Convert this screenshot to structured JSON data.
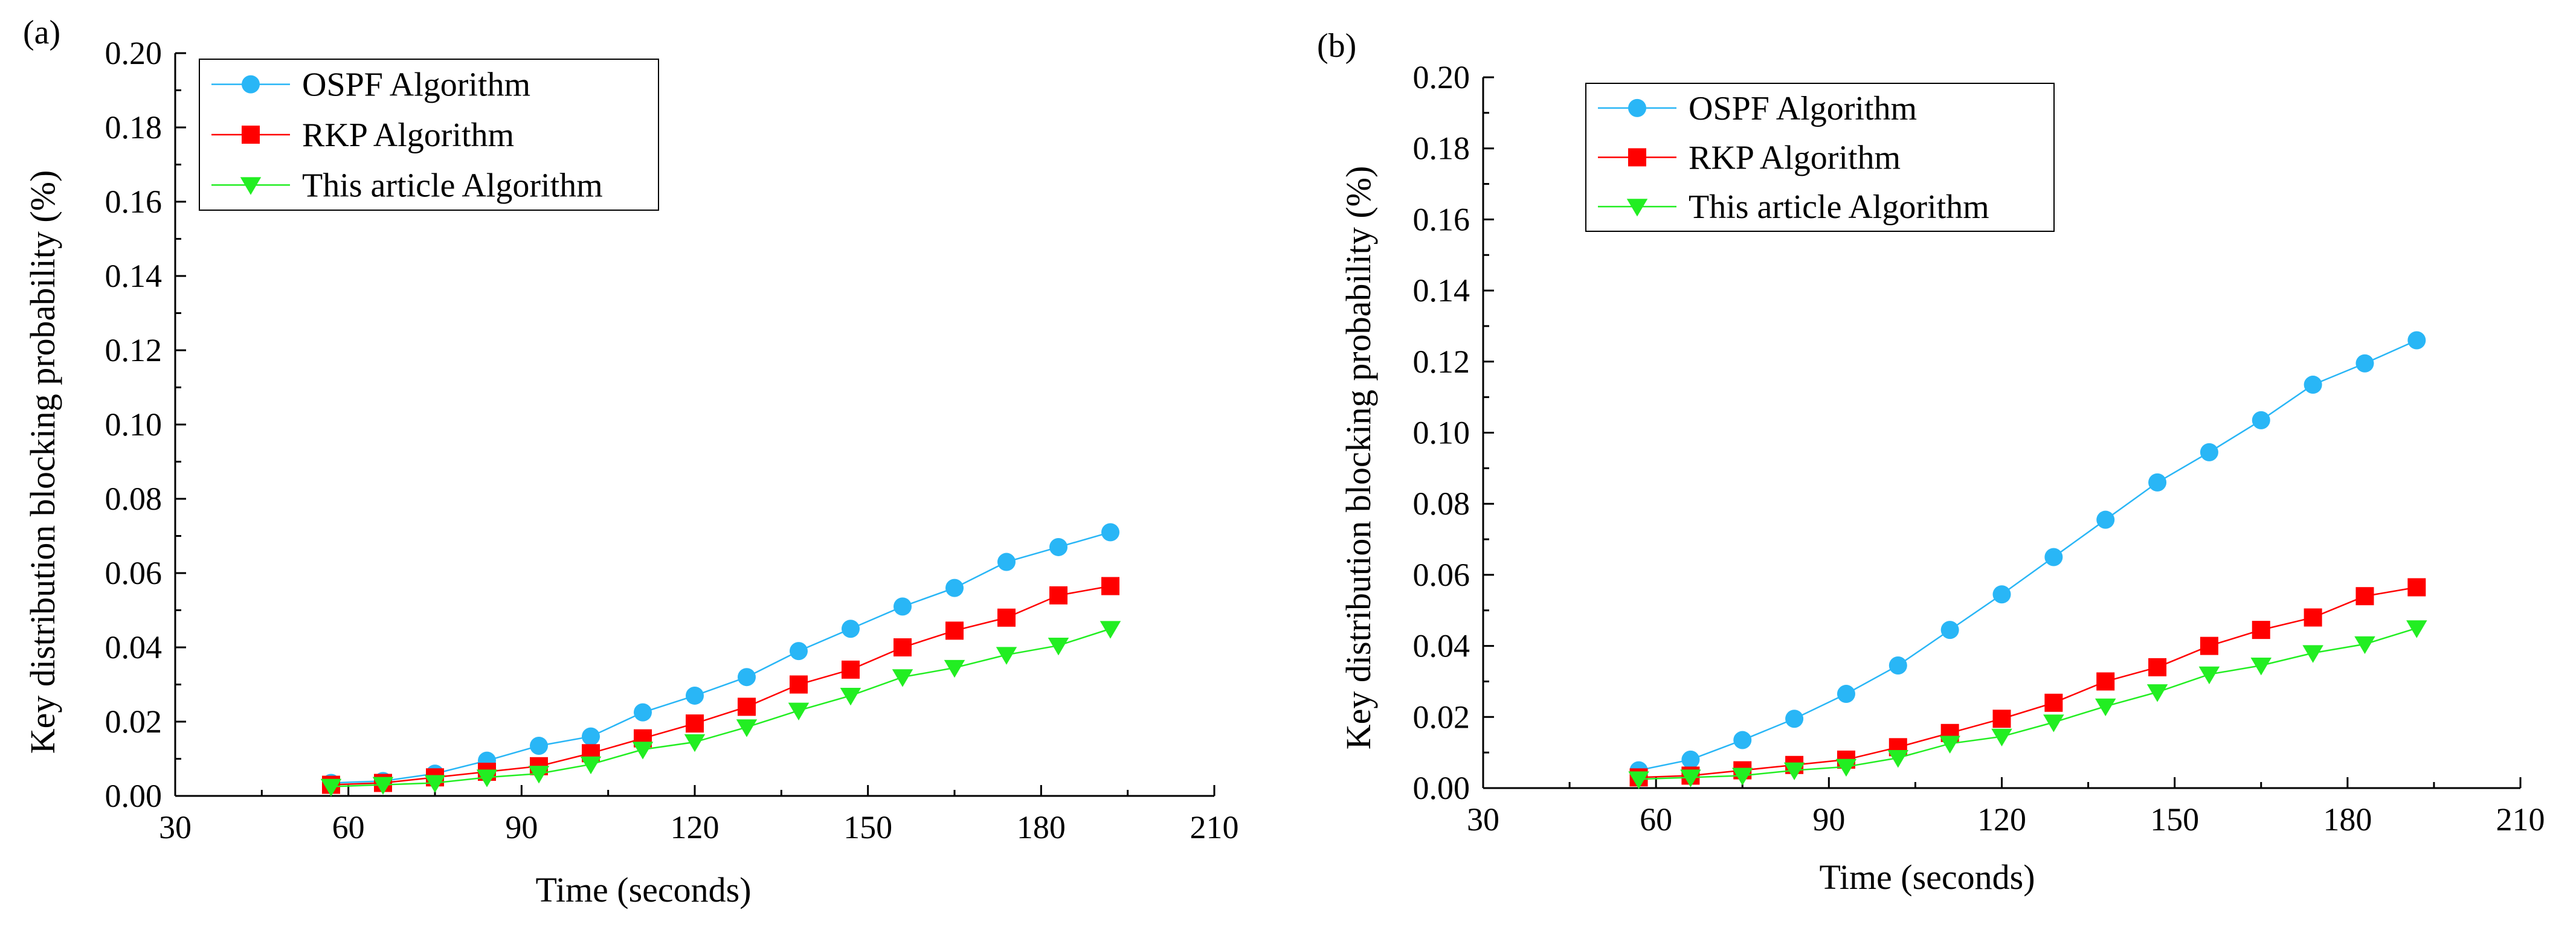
{
  "colors": {
    "osp": "#29b6f6",
    "rkp": "#ff0000",
    "ours": "#22ee22",
    "axis": "#000000"
  },
  "chart_data": [
    {
      "type": "line",
      "panel": "(a)",
      "xlabel": "Time (seconds)",
      "ylabel": "Key distribution blocking probability (%)",
      "xlim": [
        30,
        210
      ],
      "ylim": [
        0.0,
        0.2
      ],
      "xticks": [
        "30",
        "60",
        "90",
        "120",
        "150",
        "180",
        "210"
      ],
      "yticks": [
        "0.00",
        "0.02",
        "0.04",
        "0.06",
        "0.08",
        "0.10",
        "0.12",
        "0.14",
        "0.16",
        "0.18",
        "0.20"
      ],
      "legend_position": "top-left",
      "grid": false,
      "x": [
        57,
        66,
        75,
        84,
        93,
        102,
        111,
        120,
        129,
        138,
        147,
        156,
        165,
        174,
        183,
        192
      ],
      "series": [
        {
          "name": "OSPF Algorithm",
          "marker": "circle",
          "color": "#29b6f6",
          "values": [
            0.0035,
            0.004,
            0.006,
            0.0095,
            0.0135,
            0.016,
            0.0225,
            0.027,
            0.032,
            0.039,
            0.045,
            0.051,
            0.056,
            0.063,
            0.067,
            0.071
          ]
        },
        {
          "name": "RKP Algorithm",
          "marker": "square",
          "color": "#ff0000",
          "values": [
            0.003,
            0.0035,
            0.005,
            0.0065,
            0.008,
            0.0115,
            0.0155,
            0.0195,
            0.024,
            0.03,
            0.034,
            0.04,
            0.0445,
            0.048,
            0.054,
            0.0565
          ]
        },
        {
          "name": "This article Algorithm",
          "marker": "triangle-down",
          "color": "#22ee22",
          "values": [
            0.0025,
            0.003,
            0.0035,
            0.005,
            0.006,
            0.0085,
            0.0125,
            0.0145,
            0.0185,
            0.023,
            0.027,
            0.032,
            0.0345,
            0.038,
            0.0405,
            0.045
          ]
        }
      ]
    },
    {
      "type": "line",
      "panel": "(b)",
      "xlabel": "Time (seconds)",
      "ylabel": "Key distribution blocking probability (%)",
      "xlim": [
        30,
        210
      ],
      "ylim": [
        0.0,
        0.2
      ],
      "xticks": [
        "30",
        "60",
        "90",
        "120",
        "150",
        "180",
        "210"
      ],
      "yticks": [
        "0.00",
        "0.02",
        "0.04",
        "0.06",
        "0.08",
        "0.10",
        "0.12",
        "0.14",
        "0.16",
        "0.18",
        "0.20"
      ],
      "legend_position": "top-left",
      "grid": false,
      "x": [
        57,
        66,
        75,
        84,
        93,
        102,
        111,
        120,
        129,
        138,
        147,
        156,
        165,
        174,
        183,
        192
      ],
      "series": [
        {
          "name": "OSPF Algorithm",
          "marker": "circle",
          "color": "#29b6f6",
          "values": [
            0.005,
            0.008,
            0.0135,
            0.0195,
            0.0265,
            0.0345,
            0.0445,
            0.0545,
            0.065,
            0.0755,
            0.086,
            0.0945,
            0.1035,
            0.1135,
            0.1195,
            0.126
          ]
        },
        {
          "name": "RKP Algorithm",
          "marker": "square",
          "color": "#ff0000",
          "values": [
            0.003,
            0.0035,
            0.005,
            0.0065,
            0.008,
            0.0115,
            0.0155,
            0.0195,
            0.024,
            0.03,
            0.034,
            0.04,
            0.0445,
            0.048,
            0.054,
            0.0565
          ]
        },
        {
          "name": "This article Algorithm",
          "marker": "triangle-down",
          "color": "#22ee22",
          "values": [
            0.0025,
            0.003,
            0.0035,
            0.005,
            0.006,
            0.0085,
            0.0125,
            0.0145,
            0.0185,
            0.023,
            0.027,
            0.032,
            0.0345,
            0.038,
            0.0405,
            0.045
          ]
        }
      ]
    }
  ]
}
